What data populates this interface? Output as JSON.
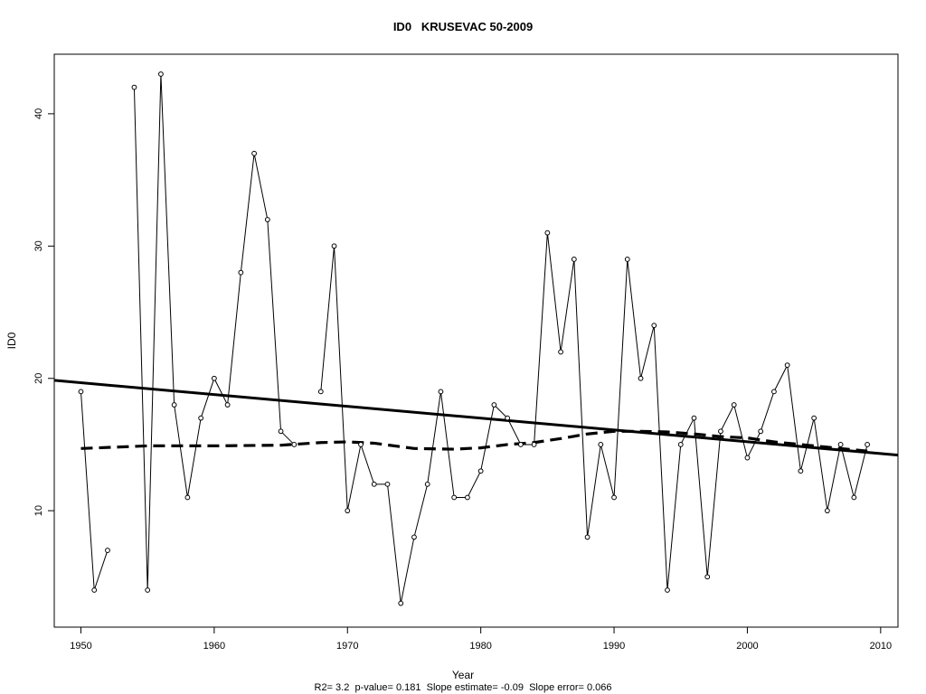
{
  "chart_data": {
    "type": "line",
    "title": "ID0   KRUSEVAC 50-2009",
    "xlabel": "Year",
    "ylabel": "ID0",
    "subtitle": "R2= 3.2  p-value= 0.181  Slope estimate= -0.09  Slope error= 0.066",
    "xlim": [
      1948,
      2011.3
    ],
    "ylim": [
      1.2,
      44.5
    ],
    "x_ticks": [
      1950,
      1960,
      1970,
      1980,
      1990,
      2000,
      2010
    ],
    "y_ticks": [
      10,
      20,
      30,
      40
    ],
    "grid": false,
    "legend": "none",
    "series": [
      {
        "style": "line-with-points",
        "x": [
          1950,
          1951,
          1952,
          1953,
          1954,
          1955,
          1956,
          1957,
          1958,
          1959,
          1960,
          1961,
          1962,
          1963,
          1964,
          1965,
          1966,
          1967,
          1968,
          1969,
          1970,
          1971,
          1972,
          1973,
          1974,
          1975,
          1976,
          1977,
          1978,
          1979,
          1980,
          1981,
          1982,
          1983,
          1984,
          1985,
          1986,
          1987,
          1988,
          1989,
          1990,
          1991,
          1992,
          1993,
          1994,
          1995,
          1996,
          1997,
          1998,
          1999,
          2000,
          2001,
          2002,
          2003,
          2004,
          2005,
          2006,
          2007,
          2008,
          2009
        ],
        "y": [
          19,
          4,
          7,
          null,
          42,
          4,
          43,
          18,
          11,
          17,
          20,
          18,
          28,
          37,
          32,
          16,
          15,
          null,
          19,
          30,
          10,
          15,
          12,
          12,
          3,
          8,
          12,
          19,
          11,
          11,
          13,
          18,
          17,
          15,
          15,
          31,
          22,
          29,
          8,
          15,
          11,
          29,
          20,
          24,
          4,
          15,
          17,
          5,
          16,
          18,
          14,
          16,
          19,
          21,
          13,
          17,
          10,
          15,
          11,
          15
        ]
      },
      {
        "style": "linear-trend",
        "x": [
          1948,
          2011.3
        ],
        "y": [
          19.85,
          14.2
        ]
      },
      {
        "style": "smoothed-dashed",
        "x": [
          1950,
          1955,
          1960,
          1965,
          1968,
          1970,
          1972,
          1975,
          1978,
          1980,
          1982,
          1984,
          1986,
          1988,
          1990,
          1992,
          1994,
          1996,
          1998,
          2000,
          2002,
          2004,
          2006,
          2008,
          2009
        ],
        "y": [
          14.7,
          14.9,
          14.9,
          14.95,
          15.15,
          15.2,
          15.1,
          14.7,
          14.65,
          14.75,
          15.0,
          15.15,
          15.45,
          15.8,
          16.0,
          16.0,
          15.95,
          15.8,
          15.6,
          15.5,
          15.2,
          15.0,
          14.8,
          14.6,
          14.5
        ]
      }
    ]
  }
}
